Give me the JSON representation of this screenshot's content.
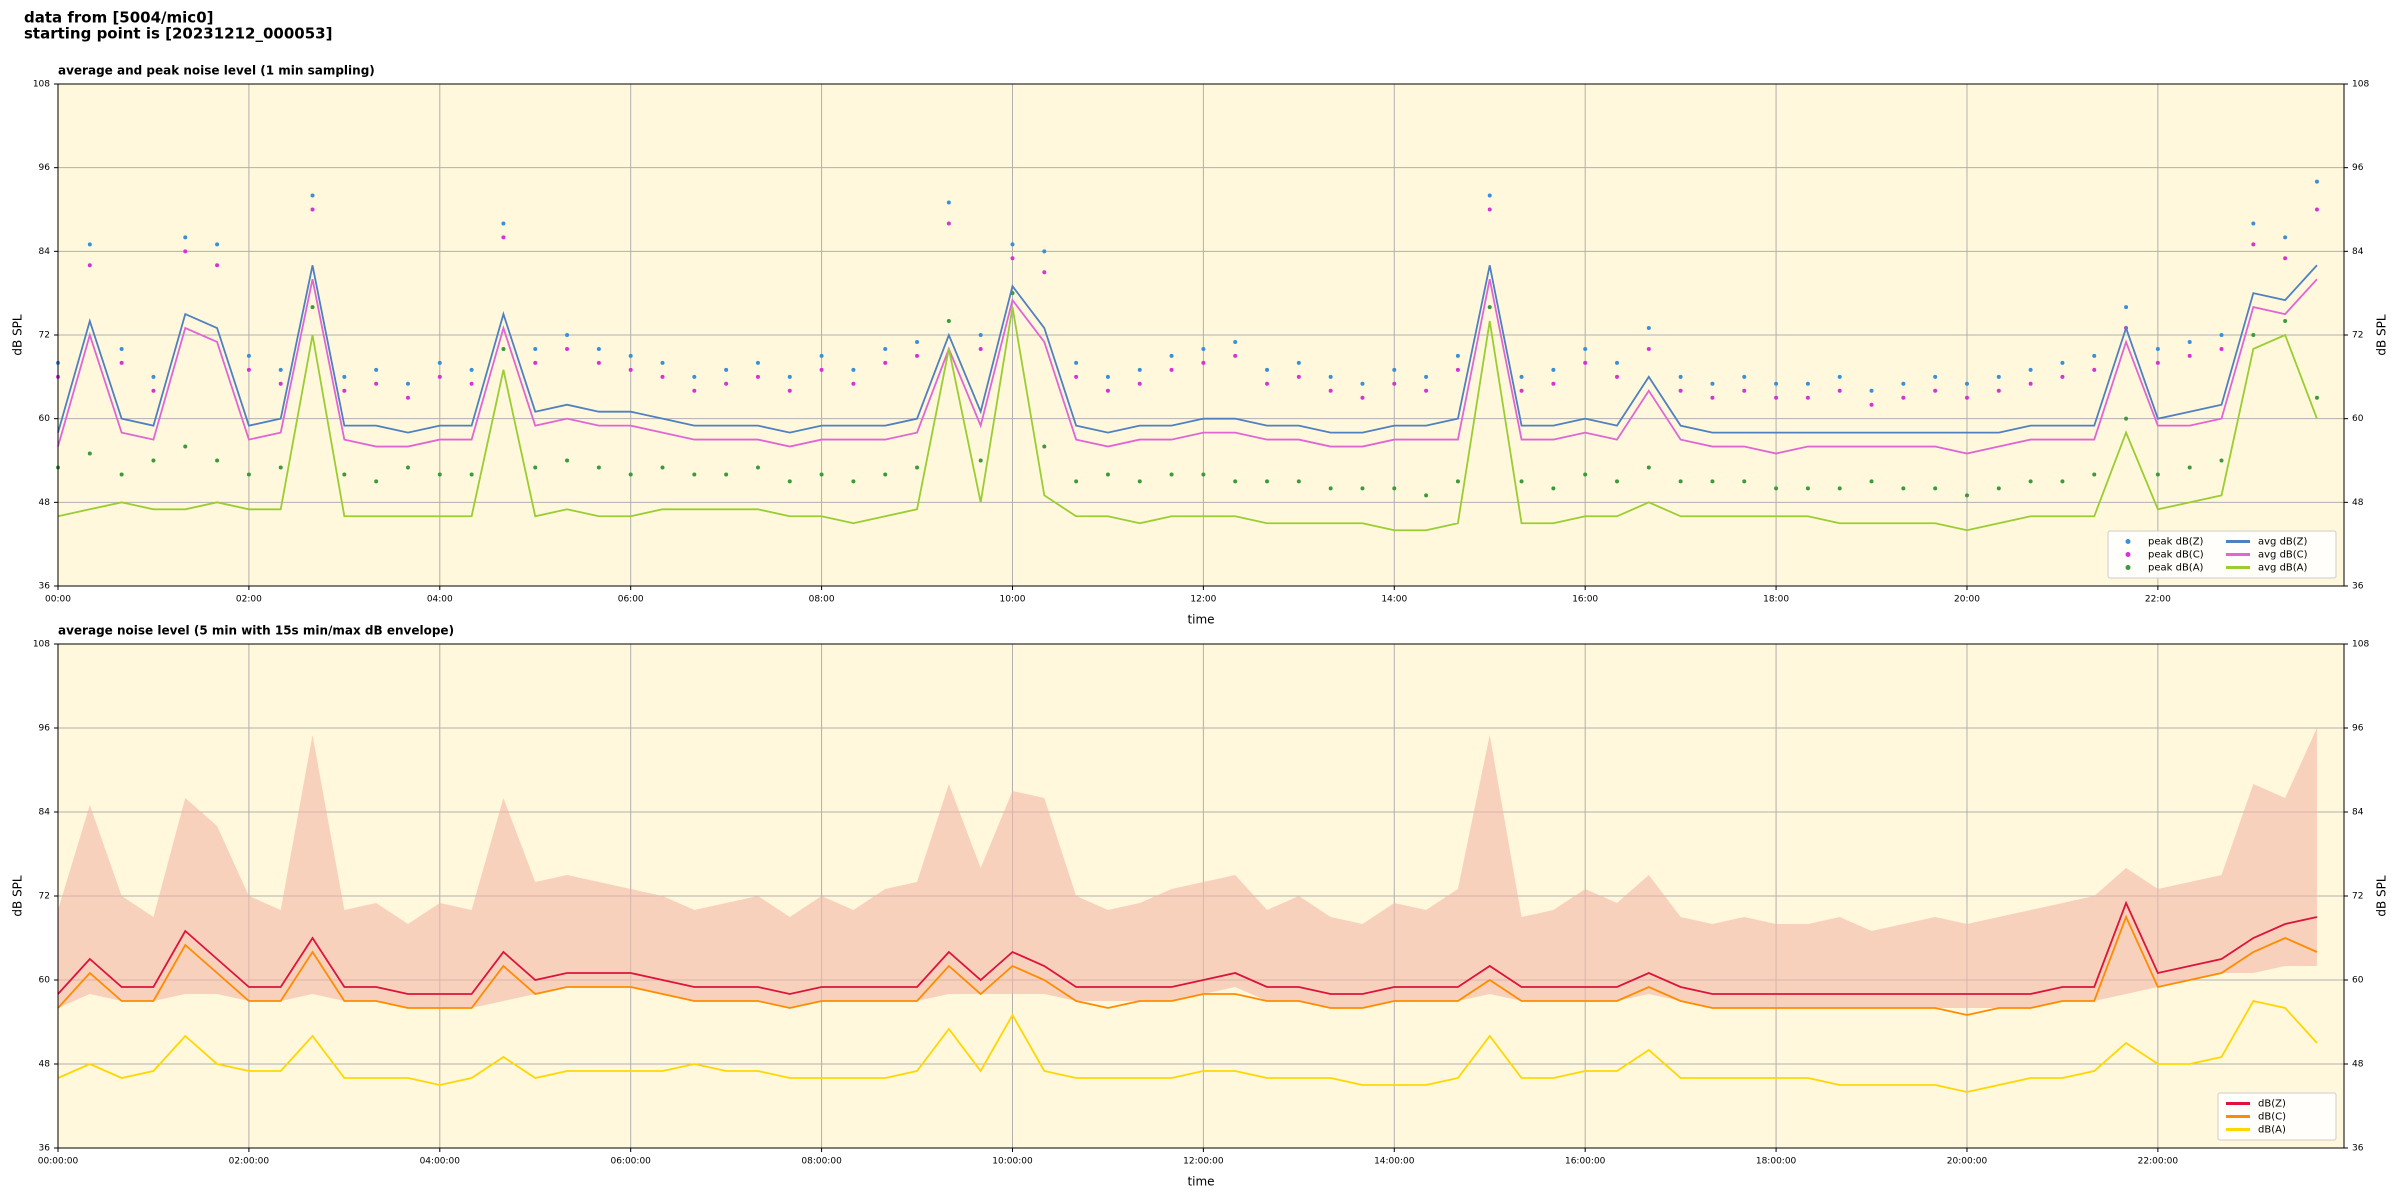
{
  "header": {
    "line1": "data from [5004/mic0]",
    "line2": "starting point is [20231212_000053]"
  },
  "chart_data": [
    {
      "type": "line",
      "title": "average and peak noise level (1 min sampling)",
      "x_label": "time",
      "y_label": "dB SPL",
      "background": "#fff8dc",
      "grid": true,
      "legend": "lower right",
      "legend_columns": 2,
      "x": [
        0,
        20,
        40,
        60,
        80,
        100,
        120,
        140,
        160,
        180,
        200,
        220,
        240,
        260,
        280,
        300,
        320,
        340,
        360,
        380,
        400,
        420,
        440,
        460,
        480,
        500,
        520,
        540,
        560,
        580,
        600,
        620,
        640,
        660,
        680,
        700,
        720,
        740,
        760,
        780,
        800,
        820,
        840,
        860,
        880,
        900,
        920,
        940,
        960,
        980,
        1000,
        1020,
        1040,
        1060,
        1080,
        1100,
        1120,
        1140,
        1160,
        1180,
        1200,
        1220,
        1240,
        1260,
        1280,
        1300,
        1320,
        1340,
        1360,
        1380,
        1400,
        1420
      ],
      "xlim": [
        0,
        1437
      ],
      "xticks": [
        {
          "value": 0,
          "label": "00:00"
        },
        {
          "value": 120,
          "label": "02:00"
        },
        {
          "value": 240,
          "label": "04:00"
        },
        {
          "value": 360,
          "label": "06:00"
        },
        {
          "value": 480,
          "label": "08:00"
        },
        {
          "value": 600,
          "label": "10:00"
        },
        {
          "value": 720,
          "label": "12:00"
        },
        {
          "value": 840,
          "label": "14:00"
        },
        {
          "value": 960,
          "label": "16:00"
        },
        {
          "value": 1080,
          "label": "18:00"
        },
        {
          "value": 1200,
          "label": "20:00"
        },
        {
          "value": 1320,
          "label": "22:00"
        }
      ],
      "ylim": [
        36,
        108
      ],
      "yticks": [
        36,
        48,
        60,
        72,
        84,
        96,
        108
      ],
      "series": [
        {
          "name": "peak dB(Z)",
          "style": "points",
          "color": "#3a8fd9",
          "values": [
            68,
            85,
            70,
            66,
            86,
            85,
            69,
            67,
            92,
            66,
            67,
            65,
            68,
            67,
            88,
            70,
            72,
            70,
            69,
            68,
            66,
            67,
            68,
            66,
            69,
            67,
            70,
            71,
            91,
            72,
            85,
            84,
            68,
            66,
            67,
            69,
            70,
            71,
            67,
            68,
            66,
            65,
            67,
            66,
            69,
            92,
            66,
            67,
            70,
            68,
            73,
            66,
            65,
            66,
            65,
            65,
            66,
            64,
            65,
            66,
            65,
            66,
            67,
            68,
            69,
            76,
            70,
            71,
            72,
            88,
            86,
            94
          ]
        },
        {
          "name": "peak dB(C)",
          "style": "points",
          "color": "#d633d6",
          "values": [
            66,
            82,
            68,
            64,
            84,
            82,
            67,
            65,
            90,
            64,
            65,
            63,
            66,
            65,
            86,
            68,
            70,
            68,
            67,
            66,
            64,
            65,
            66,
            64,
            67,
            65,
            68,
            69,
            88,
            70,
            83,
            81,
            66,
            64,
            65,
            67,
            68,
            69,
            65,
            66,
            64,
            63,
            65,
            64,
            67,
            90,
            64,
            65,
            68,
            66,
            70,
            64,
            63,
            64,
            63,
            63,
            64,
            62,
            63,
            64,
            63,
            64,
            65,
            66,
            67,
            73,
            68,
            69,
            70,
            85,
            83,
            90
          ]
        },
        {
          "name": "peak dB(A)",
          "style": "points",
          "color": "#3c9a3c",
          "values": [
            53,
            55,
            52,
            54,
            56,
            54,
            52,
            53,
            76,
            52,
            51,
            53,
            52,
            52,
            70,
            53,
            54,
            53,
            52,
            53,
            52,
            52,
            53,
            51,
            52,
            51,
            52,
            53,
            74,
            54,
            78,
            56,
            51,
            52,
            51,
            52,
            52,
            51,
            51,
            51,
            50,
            50,
            50,
            49,
            51,
            76,
            51,
            50,
            52,
            51,
            53,
            51,
            51,
            51,
            50,
            50,
            50,
            51,
            50,
            50,
            49,
            50,
            51,
            51,
            52,
            60,
            52,
            53,
            54,
            72,
            74,
            63
          ]
        },
        {
          "name": "avg dB(Z)",
          "style": "line",
          "color": "#4f80c0",
          "values": [
            58,
            74,
            60,
            59,
            75,
            73,
            59,
            60,
            82,
            59,
            59,
            58,
            59,
            59,
            75,
            61,
            62,
            61,
            61,
            60,
            59,
            59,
            59,
            58,
            59,
            59,
            59,
            60,
            72,
            61,
            79,
            73,
            59,
            58,
            59,
            59,
            60,
            60,
            59,
            59,
            58,
            58,
            59,
            59,
            60,
            82,
            59,
            59,
            60,
            59,
            66,
            59,
            58,
            58,
            58,
            58,
            58,
            58,
            58,
            58,
            58,
            58,
            59,
            59,
            59,
            73,
            60,
            61,
            62,
            78,
            77,
            82
          ]
        },
        {
          "name": "avg dB(C)",
          "style": "line",
          "color": "#e066d6",
          "values": [
            56,
            72,
            58,
            57,
            73,
            71,
            57,
            58,
            80,
            57,
            56,
            56,
            57,
            57,
            73,
            59,
            60,
            59,
            59,
            58,
            57,
            57,
            57,
            56,
            57,
            57,
            57,
            58,
            70,
            59,
            77,
            71,
            57,
            56,
            57,
            57,
            58,
            58,
            57,
            57,
            56,
            56,
            57,
            57,
            57,
            80,
            57,
            57,
            58,
            57,
            64,
            57,
            56,
            56,
            55,
            56,
            56,
            56,
            56,
            56,
            55,
            56,
            57,
            57,
            57,
            71,
            59,
            59,
            60,
            76,
            75,
            80
          ]
        },
        {
          "name": "avg dB(A)",
          "style": "line",
          "color": "#9acd32",
          "values": [
            46,
            47,
            48,
            47,
            47,
            48,
            47,
            47,
            72,
            46,
            46,
            46,
            46,
            46,
            67,
            46,
            47,
            46,
            46,
            47,
            47,
            47,
            47,
            46,
            46,
            45,
            46,
            47,
            70,
            48,
            76,
            49,
            46,
            46,
            45,
            46,
            46,
            46,
            45,
            45,
            45,
            45,
            44,
            44,
            45,
            74,
            45,
            45,
            46,
            46,
            48,
            46,
            46,
            46,
            46,
            46,
            45,
            45,
            45,
            45,
            44,
            45,
            46,
            46,
            46,
            58,
            47,
            48,
            49,
            70,
            72,
            60
          ]
        }
      ]
    },
    {
      "type": "line",
      "title": "average noise level (5 min with 15s min/max dB envelope)",
      "x_label": "time",
      "y_label": "dB SPL",
      "background": "#fff8dc",
      "grid": true,
      "legend": "lower right",
      "legend_columns": 1,
      "x": [
        0,
        20,
        40,
        60,
        80,
        100,
        120,
        140,
        160,
        180,
        200,
        220,
        240,
        260,
        280,
        300,
        320,
        340,
        360,
        380,
        400,
        420,
        440,
        460,
        480,
        500,
        520,
        540,
        560,
        580,
        600,
        620,
        640,
        660,
        680,
        700,
        720,
        740,
        760,
        780,
        800,
        820,
        840,
        860,
        880,
        900,
        920,
        940,
        960,
        980,
        1000,
        1020,
        1040,
        1060,
        1080,
        1100,
        1120,
        1140,
        1160,
        1180,
        1200,
        1220,
        1240,
        1260,
        1280,
        1300,
        1320,
        1340,
        1360,
        1380,
        1400,
        1420
      ],
      "xlim": [
        0,
        1437
      ],
      "xticks": [
        {
          "value": 0,
          "label": "00:00:00"
        },
        {
          "value": 120,
          "label": "02:00:00"
        },
        {
          "value": 240,
          "label": "04:00:00"
        },
        {
          "value": 360,
          "label": "06:00:00"
        },
        {
          "value": 480,
          "label": "08:00:00"
        },
        {
          "value": 600,
          "label": "10:00:00"
        },
        {
          "value": 720,
          "label": "12:00:00"
        },
        {
          "value": 840,
          "label": "14:00:00"
        },
        {
          "value": 960,
          "label": "16:00:00"
        },
        {
          "value": 1080,
          "label": "18:00:00"
        },
        {
          "value": 1200,
          "label": "20:00:00"
        },
        {
          "value": 1320,
          "label": "22:00:00"
        }
      ],
      "ylim": [
        36,
        108
      ],
      "yticks": [
        36,
        48,
        60,
        72,
        84,
        96,
        108
      ],
      "envelope": {
        "color": "#f4b8a8",
        "lower": [
          56,
          58,
          57,
          57,
          58,
          58,
          57,
          57,
          58,
          57,
          57,
          56,
          56,
          56,
          57,
          58,
          59,
          59,
          59,
          58,
          57,
          57,
          57,
          56,
          57,
          57,
          57,
          57,
          58,
          58,
          58,
          58,
          57,
          57,
          57,
          57,
          58,
          59,
          57,
          57,
          56,
          56,
          57,
          57,
          57,
          58,
          57,
          57,
          57,
          57,
          58,
          57,
          56,
          56,
          56,
          56,
          56,
          56,
          56,
          56,
          56,
          56,
          56,
          57,
          57,
          58,
          59,
          60,
          61,
          61,
          62,
          62
        ],
        "upper": [
          70,
          85,
          72,
          69,
          86,
          82,
          72,
          70,
          95,
          70,
          71,
          68,
          71,
          70,
          86,
          74,
          75,
          74,
          73,
          72,
          70,
          71,
          72,
          69,
          72,
          70,
          73,
          74,
          88,
          76,
          87,
          86,
          72,
          70,
          71,
          73,
          74,
          75,
          70,
          72,
          69,
          68,
          71,
          70,
          73,
          95,
          69,
          70,
          73,
          71,
          75,
          69,
          68,
          69,
          68,
          68,
          69,
          67,
          68,
          69,
          68,
          69,
          70,
          71,
          72,
          76,
          73,
          74,
          75,
          88,
          86,
          96
        ]
      },
      "series": [
        {
          "name": "dB(Z)",
          "style": "line",
          "color": "#dc143c",
          "values": [
            58,
            63,
            59,
            59,
            67,
            63,
            59,
            59,
            66,
            59,
            59,
            58,
            58,
            58,
            64,
            60,
            61,
            61,
            61,
            60,
            59,
            59,
            59,
            58,
            59,
            59,
            59,
            59,
            64,
            60,
            64,
            62,
            59,
            59,
            59,
            59,
            60,
            61,
            59,
            59,
            58,
            58,
            59,
            59,
            59,
            62,
            59,
            59,
            59,
            59,
            61,
            59,
            58,
            58,
            58,
            58,
            58,
            58,
            58,
            58,
            58,
            58,
            58,
            59,
            59,
            71,
            61,
            62,
            63,
            66,
            68,
            69
          ]
        },
        {
          "name": "dB(C)",
          "style": "line",
          "color": "#ff8c00",
          "values": [
            56,
            61,
            57,
            57,
            65,
            61,
            57,
            57,
            64,
            57,
            57,
            56,
            56,
            56,
            62,
            58,
            59,
            59,
            59,
            58,
            57,
            57,
            57,
            56,
            57,
            57,
            57,
            57,
            62,
            58,
            62,
            60,
            57,
            56,
            57,
            57,
            58,
            58,
            57,
            57,
            56,
            56,
            57,
            57,
            57,
            60,
            57,
            57,
            57,
            57,
            59,
            57,
            56,
            56,
            56,
            56,
            56,
            56,
            56,
            56,
            55,
            56,
            56,
            57,
            57,
            69,
            59,
            60,
            61,
            64,
            66,
            64
          ]
        },
        {
          "name": "dB(A)",
          "style": "line",
          "color": "#ffd700",
          "values": [
            46,
            48,
            46,
            47,
            52,
            48,
            47,
            47,
            52,
            46,
            46,
            46,
            45,
            46,
            49,
            46,
            47,
            47,
            47,
            47,
            48,
            47,
            47,
            46,
            46,
            46,
            46,
            47,
            53,
            47,
            55,
            47,
            46,
            46,
            46,
            46,
            47,
            47,
            46,
            46,
            46,
            45,
            45,
            45,
            46,
            52,
            46,
            46,
            47,
            47,
            50,
            46,
            46,
            46,
            46,
            46,
            45,
            45,
            45,
            45,
            44,
            45,
            46,
            46,
            47,
            51,
            48,
            48,
            49,
            57,
            56,
            51
          ]
        }
      ]
    }
  ]
}
